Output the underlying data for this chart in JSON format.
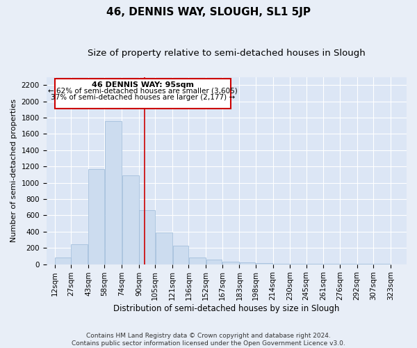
{
  "title": "46, DENNIS WAY, SLOUGH, SL1 5JP",
  "subtitle": "Size of property relative to semi-detached houses in Slough",
  "xlabel": "Distribution of semi-detached houses by size in Slough",
  "ylabel": "Number of semi-detached properties",
  "footer_line1": "Contains HM Land Registry data © Crown copyright and database right 2024.",
  "footer_line2": "Contains public sector information licensed under the Open Government Licence v3.0.",
  "annotation_line1": "46 DENNIS WAY: 95sqm",
  "annotation_line2": "← 62% of semi-detached houses are smaller (3,605)",
  "annotation_line3": "37% of semi-detached houses are larger (2,177) →",
  "bar_centers": [
    19.5,
    34.5,
    50.5,
    66,
    82,
    97.5,
    113,
    128.5,
    144,
    159.5,
    175,
    190.5,
    206,
    222,
    237.5,
    253,
    268.5,
    284,
    299.5,
    315
  ],
  "bar_widths": [
    15,
    16,
    15,
    16,
    16,
    15,
    16,
    15,
    16,
    15,
    16,
    15,
    16,
    16,
    15,
    16,
    15,
    16,
    15,
    16
  ],
  "bar_heights": [
    85,
    242,
    1170,
    1760,
    1090,
    660,
    390,
    225,
    80,
    60,
    30,
    20,
    10,
    5,
    5,
    5,
    5,
    5,
    5,
    5
  ],
  "bar_color": "#ccdcef",
  "bar_edge_color": "#9ab8d8",
  "vline_color": "#cc0000",
  "vline_x": 95,
  "ylim": [
    0,
    2300
  ],
  "yticks": [
    0,
    200,
    400,
    600,
    800,
    1000,
    1200,
    1400,
    1600,
    1800,
    2000,
    2200
  ],
  "xtick_labels": [
    "12sqm",
    "27sqm",
    "43sqm",
    "58sqm",
    "74sqm",
    "90sqm",
    "105sqm",
    "121sqm",
    "136sqm",
    "152sqm",
    "167sqm",
    "183sqm",
    "198sqm",
    "214sqm",
    "230sqm",
    "245sqm",
    "261sqm",
    "276sqm",
    "292sqm",
    "307sqm",
    "323sqm"
  ],
  "xtick_positions": [
    12,
    27,
    43,
    58,
    74,
    90,
    105,
    121,
    136,
    152,
    167,
    183,
    198,
    214,
    230,
    245,
    261,
    276,
    292,
    307,
    323
  ],
  "xlim": [
    4,
    338
  ],
  "background_color": "#e8eef7",
  "plot_bg_color": "#dce6f5",
  "grid_color": "#ffffff",
  "title_fontsize": 11,
  "subtitle_fontsize": 9.5,
  "annotation_fontsize": 8,
  "tick_fontsize": 7.5,
  "ylabel_fontsize": 8,
  "xlabel_fontsize": 8.5
}
